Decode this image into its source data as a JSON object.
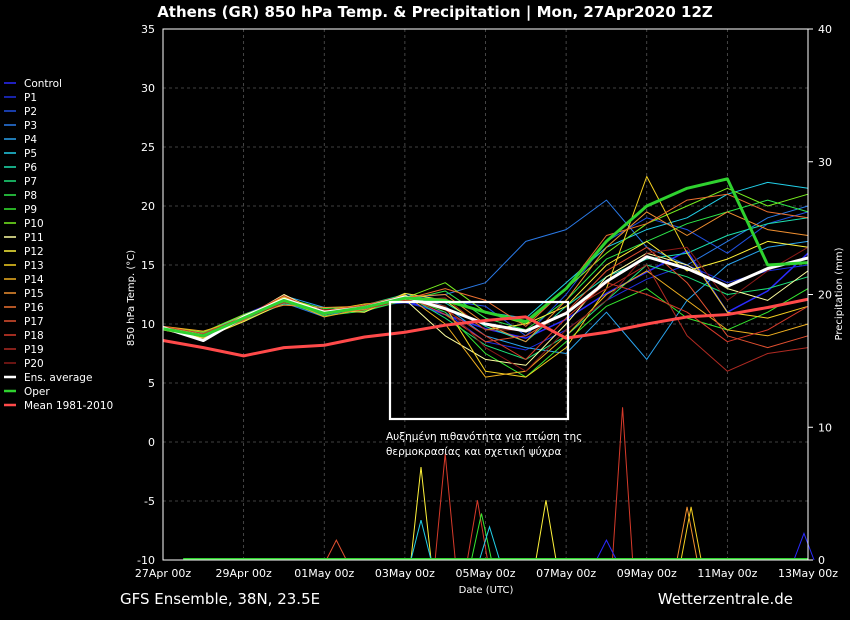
{
  "chart_data": {
    "type": "line",
    "title": "Athens  (GR)  850 hPa Temp. & Precipitation | Mon, 27Apr2020 12Z",
    "ylabel_left": "850 hPa Temp. (°C)",
    "ylabel_right": "Precipitation (mm)",
    "xlabel": "Date (UTC)",
    "ylim_left": [
      -10,
      35
    ],
    "yticks_left": [
      "35",
      "30",
      "25",
      "20",
      "15",
      "10",
      "5",
      "0",
      "-5",
      "-10"
    ],
    "ylim_right": [
      0,
      40
    ],
    "yticks_right": [
      "40",
      "30",
      "20",
      "10",
      "0"
    ],
    "x_range_days": [
      0,
      16
    ],
    "x_ticks": [
      {
        "day": 0,
        "label": "27Apr 00z"
      },
      {
        "day": 2,
        "label": "29Apr 00z"
      },
      {
        "day": 4,
        "label": "01May 00z"
      },
      {
        "day": 6,
        "label": "03May 00z"
      },
      {
        "day": 8,
        "label": "05May 00z"
      },
      {
        "day": 10,
        "label": "07May 00z"
      },
      {
        "day": 12,
        "label": "09May 00z"
      },
      {
        "day": 14,
        "label": "11May 00z"
      },
      {
        "day": 16,
        "label": "13May 00z"
      }
    ],
    "grid": true,
    "legend_position": "left-outside",
    "footer_left": "GFS Ensemble, 38N, 23.5E",
    "footer_right": "Wetterzentrale.de",
    "annotation": {
      "line1": "Αυξημένη πιθανότητα για πτώση της",
      "line2": "θερμοκρασίας και σχετική ψύχρα",
      "box_days": [
        5.0,
        9.5
      ],
      "box_temp": [
        2,
        12
      ]
    },
    "series": [
      {
        "name": "Control",
        "color": "#2b2bff",
        "width": 1.5,
        "values": [
          9.8,
          9.0,
          10.4,
          11.9,
          10.8,
          11.3,
          12.0,
          10.8,
          9.6,
          8.8,
          10.4,
          12.6,
          14.4,
          16.2,
          11.0,
          12.8,
          16.0
        ]
      },
      {
        "name": "P1",
        "color": "#1f2fe0",
        "width": 1,
        "values": [
          9.6,
          9.1,
          10.8,
          12.2,
          11.0,
          11.5,
          11.8,
          11.0,
          8.5,
          7.8,
          9.5,
          12.0,
          13.8,
          15.0,
          13.5,
          14.5,
          15.0
        ]
      },
      {
        "name": "P2",
        "color": "#2050e0",
        "width": 1,
        "values": [
          9.7,
          8.8,
          10.6,
          12.0,
          11.2,
          11.0,
          12.4,
          12.0,
          11.5,
          9.0,
          12.5,
          17.0,
          19.0,
          18.0,
          16.0,
          18.5,
          19.5
        ]
      },
      {
        "name": "P3",
        "color": "#2a7ae8",
        "width": 1,
        "values": [
          9.5,
          9.2,
          10.2,
          11.8,
          10.6,
          11.6,
          12.2,
          12.5,
          13.5,
          17.0,
          18.0,
          20.5,
          16.5,
          15.0,
          17.0,
          19.0,
          20.0
        ]
      },
      {
        "name": "P4",
        "color": "#2aa3ee",
        "width": 1,
        "values": [
          9.7,
          9.0,
          10.5,
          12.4,
          11.4,
          11.2,
          12.6,
          11.5,
          9.0,
          8.0,
          7.5,
          11.0,
          7.0,
          12.0,
          15.0,
          16.5,
          17.0
        ]
      },
      {
        "name": "P5",
        "color": "#22cfe8",
        "width": 1,
        "values": [
          9.6,
          9.3,
          10.7,
          12.1,
          10.9,
          11.4,
          12.3,
          12.0,
          11.0,
          10.5,
          13.5,
          16.5,
          18.0,
          19.0,
          21.0,
          22.0,
          21.5
        ]
      },
      {
        "name": "P6",
        "color": "#1ee0b0",
        "width": 1,
        "values": [
          9.8,
          9.1,
          10.3,
          11.7,
          11.1,
          11.3,
          12.1,
          11.8,
          9.8,
          8.5,
          11.5,
          14.0,
          15.5,
          16.0,
          17.5,
          18.5,
          19.0
        ]
      },
      {
        "name": "P7",
        "color": "#1ee07a",
        "width": 1,
        "values": [
          9.5,
          8.9,
          10.5,
          12.3,
          11.0,
          11.6,
          12.5,
          10.5,
          8.2,
          7.0,
          9.0,
          12.0,
          15.0,
          14.0,
          12.5,
          13.0,
          14.0
        ]
      },
      {
        "name": "P8",
        "color": "#2ee84a",
        "width": 1,
        "values": [
          9.7,
          9.2,
          10.6,
          11.9,
          10.7,
          11.1,
          12.0,
          12.8,
          10.5,
          9.5,
          12.0,
          15.5,
          17.0,
          18.5,
          19.5,
          20.5,
          19.5
        ]
      },
      {
        "name": "P9",
        "color": "#36e830",
        "width": 1,
        "values": [
          9.6,
          9.0,
          10.4,
          12.2,
          11.3,
          11.5,
          12.4,
          11.0,
          7.5,
          5.5,
          8.5,
          11.5,
          13.0,
          10.5,
          9.5,
          11.0,
          13.0
        ]
      },
      {
        "name": "P10",
        "color": "#78ef20",
        "width": 1,
        "values": [
          9.8,
          9.3,
          10.8,
          12.0,
          11.0,
          11.2,
          12.2,
          13.5,
          11.0,
          10.0,
          13.0,
          16.0,
          18.5,
          20.0,
          21.5,
          20.0,
          21.0
        ]
      },
      {
        "name": "P11",
        "color": "#ffffa0",
        "width": 1,
        "values": [
          9.7,
          9.1,
          10.5,
          12.5,
          10.8,
          11.4,
          12.1,
          9.0,
          7.0,
          6.5,
          10.0,
          14.0,
          16.0,
          15.0,
          13.0,
          12.0,
          14.5
        ]
      },
      {
        "name": "P12",
        "color": "#fff23a",
        "width": 1,
        "values": [
          9.5,
          8.8,
          10.2,
          11.8,
          11.2,
          11.0,
          12.6,
          12.0,
          9.5,
          10.0,
          11.5,
          15.0,
          17.0,
          14.5,
          15.5,
          17.0,
          16.5
        ]
      },
      {
        "name": "P13",
        "color": "#f5d020",
        "width": 1,
        "values": [
          9.6,
          9.0,
          10.6,
          12.3,
          11.1,
          11.7,
          12.0,
          11.5,
          6.0,
          5.5,
          8.0,
          13.0,
          22.5,
          16.0,
          11.0,
          10.5,
          11.5
        ]
      },
      {
        "name": "P14",
        "color": "#f0b020",
        "width": 1,
        "values": [
          9.8,
          9.4,
          10.4,
          12.1,
          10.6,
          11.3,
          12.5,
          10.0,
          5.5,
          6.0,
          9.0,
          12.5,
          14.5,
          12.0,
          9.5,
          9.0,
          10.0
        ]
      },
      {
        "name": "P15",
        "color": "#f09030",
        "width": 1,
        "values": [
          9.7,
          9.1,
          10.7,
          11.6,
          11.4,
          11.5,
          12.3,
          12.5,
          10.0,
          8.5,
          12.0,
          16.5,
          19.5,
          17.5,
          19.5,
          18.0,
          17.5
        ]
      },
      {
        "name": "P16",
        "color": "#ec7030",
        "width": 1,
        "values": [
          9.5,
          9.0,
          10.3,
          12.2,
          10.9,
          11.2,
          12.1,
          13.0,
          12.0,
          9.8,
          13.0,
          17.5,
          18.5,
          20.5,
          21.0,
          19.5,
          19.0
        ]
      },
      {
        "name": "P17",
        "color": "#e05030",
        "width": 1,
        "values": [
          9.6,
          8.9,
          10.5,
          12.0,
          11.1,
          11.6,
          12.4,
          10.8,
          8.5,
          9.0,
          11.0,
          14.5,
          16.5,
          13.5,
          9.0,
          8.0,
          9.0
        ]
      },
      {
        "name": "P18",
        "color": "#d63a2a",
        "width": 1,
        "values": [
          9.8,
          9.2,
          10.6,
          12.4,
          10.8,
          11.4,
          12.2,
          11.2,
          9.0,
          7.0,
          10.5,
          13.5,
          12.5,
          11.0,
          8.5,
          9.5,
          11.5
        ]
      },
      {
        "name": "P19",
        "color": "#b02a22",
        "width": 1,
        "values": [
          9.7,
          9.0,
          10.4,
          11.8,
          11.2,
          11.3,
          12.0,
          12.2,
          9.5,
          9.5,
          11.0,
          13.0,
          15.0,
          9.0,
          6.0,
          7.5,
          8.0
        ]
      },
      {
        "name": "P20",
        "color": "#8a1a18",
        "width": 1,
        "values": [
          9.6,
          9.1,
          10.6,
          12.1,
          11.0,
          11.5,
          12.3,
          11.5,
          8.0,
          6.0,
          9.5,
          12.0,
          16.0,
          16.5,
          12.0,
          14.5,
          16.5
        ]
      },
      {
        "name": "Ens. average",
        "color": "#ffffff",
        "width": 3,
        "values": [
          9.7,
          8.6,
          10.6,
          12.1,
          11.0,
          11.4,
          12.3,
          11.3,
          10.0,
          9.4,
          10.9,
          13.6,
          15.7,
          14.7,
          13.2,
          14.7,
          15.6
        ]
      },
      {
        "name": "Oper",
        "color": "#2fd22f",
        "width": 3,
        "values": [
          9.6,
          9.0,
          10.5,
          12.0,
          10.9,
          11.4,
          12.2,
          12.0,
          11.0,
          10.2,
          13.0,
          17.0,
          20.0,
          21.5,
          22.3,
          15.0,
          15.2
        ]
      },
      {
        "name": "Mean 1981-2010",
        "color": "#ff4a4a",
        "width": 3,
        "values": [
          8.6,
          8.0,
          7.3,
          8.0,
          8.2,
          8.9,
          9.3,
          9.9,
          10.3,
          10.6,
          8.8,
          9.3,
          10.0,
          10.6,
          10.8,
          11.4,
          12.1
        ]
      }
    ],
    "precipitation_peaks": [
      {
        "day": 6.4,
        "mm": 7,
        "color": "#fff23a"
      },
      {
        "day": 6.4,
        "mm": 3,
        "color": "#22cfe8"
      },
      {
        "day": 7.0,
        "mm": 8,
        "color": "#d63a2a"
      },
      {
        "day": 7.8,
        "mm": 4.5,
        "color": "#d63a2a"
      },
      {
        "day": 7.9,
        "mm": 3.5,
        "color": "#36e830"
      },
      {
        "day": 8.1,
        "mm": 2.5,
        "color": "#22cfe8"
      },
      {
        "day": 9.5,
        "mm": 4.5,
        "color": "#fff23a"
      },
      {
        "day": 11.4,
        "mm": 11.5,
        "color": "#d63a2a"
      },
      {
        "day": 11.0,
        "mm": 1.5,
        "color": "#2b2bff"
      },
      {
        "day": 13.0,
        "mm": 4,
        "color": "#f09030"
      },
      {
        "day": 13.1,
        "mm": 4,
        "color": "#f5d020"
      },
      {
        "day": 15.9,
        "mm": 2,
        "color": "#2b2bff"
      },
      {
        "day": 4.3,
        "mm": 1.5,
        "color": "#e05030"
      }
    ]
  }
}
